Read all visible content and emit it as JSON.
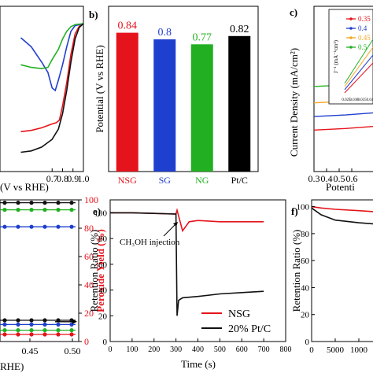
{
  "chart_data": [
    {
      "type": "line",
      "panel": "a",
      "xlabel": "(V vs RHE)",
      "xlim": [
        0.2,
        1.0
      ],
      "x_ticks": [
        "0.7",
        "0.8",
        "0.9",
        "1.0"
      ],
      "series": [
        {
          "color": "#e5131b",
          "points": [
            [
              0.4,
              -4.2
            ],
            [
              0.5,
              -4.15
            ],
            [
              0.6,
              -4.05
            ],
            [
              0.7,
              -3.9
            ],
            [
              0.74,
              -3.85
            ],
            [
              0.77,
              -3.75
            ],
            [
              0.8,
              -3.2
            ],
            [
              0.84,
              -2.3
            ],
            [
              0.88,
              -1.2
            ],
            [
              0.92,
              -0.4
            ],
            [
              0.96,
              -0.1
            ],
            [
              1.0,
              0
            ]
          ]
        },
        {
          "color": "#1f3fcf",
          "points": [
            [
              0.4,
              -0.55
            ],
            [
              0.5,
              -0.9
            ],
            [
              0.6,
              -1.5
            ],
            [
              0.66,
              -1.9
            ],
            [
              0.7,
              -2.5
            ],
            [
              0.73,
              -2.6
            ],
            [
              0.76,
              -2.2
            ],
            [
              0.8,
              -1.6
            ],
            [
              0.84,
              -0.9
            ],
            [
              0.88,
              -0.3
            ],
            [
              0.92,
              -0.08
            ],
            [
              1.0,
              0
            ]
          ]
        },
        {
          "color": "#22b022",
          "points": [
            [
              0.4,
              -1.6
            ],
            [
              0.5,
              -1.7
            ],
            [
              0.6,
              -1.75
            ],
            [
              0.66,
              -1.7
            ],
            [
              0.7,
              -1.4
            ],
            [
              0.76,
              -1.0
            ],
            [
              0.8,
              -0.6
            ],
            [
              0.84,
              -0.3
            ],
            [
              0.88,
              -0.12
            ],
            [
              0.92,
              -0.04
            ],
            [
              1.0,
              0
            ]
          ]
        },
        {
          "color": "#111111",
          "points": [
            [
              0.4,
              -5.0
            ],
            [
              0.5,
              -4.95
            ],
            [
              0.6,
              -4.8
            ],
            [
              0.7,
              -4.5
            ],
            [
              0.76,
              -4.1
            ],
            [
              0.8,
              -3.5
            ],
            [
              0.84,
              -2.6
            ],
            [
              0.88,
              -1.5
            ],
            [
              0.92,
              -0.6
            ],
            [
              0.96,
              -0.15
            ],
            [
              1.0,
              0
            ]
          ]
        }
      ]
    },
    {
      "type": "bar",
      "panel": "b",
      "panel_label": "b)",
      "ylabel": "Potential (V vs RHE)",
      "ylim": [
        0,
        1.0
      ],
      "categories": [
        "NSG",
        "SG",
        "NG",
        "Pt/C"
      ],
      "values": [
        0.84,
        0.8,
        0.77,
        0.82
      ],
      "value_labels": [
        "0.84",
        "0.8",
        "0.77",
        "0.82"
      ],
      "colors": [
        "#e5131b",
        "#1f3fcf",
        "#22b022",
        "#000000"
      ]
    },
    {
      "type": "line",
      "panel": "c_top",
      "panel_label": "c)",
      "ylabel": "Current Density (mA/cm²)",
      "xlabel": "Potenti",
      "xlim": [
        0.3,
        0.8
      ],
      "x_ticks": [
        "0.3",
        "0.4",
        "0.5",
        "0.6"
      ],
      "series": [
        {
          "color": "#22b022",
          "level": 0.78
        },
        {
          "color": "#f5a623",
          "level": 0.6
        },
        {
          "color": "#1f3fcf",
          "level": 0.45
        },
        {
          "color": "#e5131b",
          "level": 0.3
        }
      ],
      "inset": {
        "legend": [
          "0.35",
          "0.4",
          "0.45",
          "0.5"
        ],
        "legend_colors": [
          "#e5131b",
          "#1f3fcf",
          "#f5a623",
          "#22b022"
        ],
        "ylabel": "J⁻¹ (mA⁻¹cm²)",
        "x_ticks": [
          "0.025",
          "0.030",
          "0.035",
          "0.04"
        ]
      }
    },
    {
      "type": "scatter",
      "panel": "d",
      "ylabel": "Peroxide Yield (%)",
      "ylim": [
        0,
        100
      ],
      "y_ticks": [
        "0",
        "20",
        "40",
        "60",
        "80",
        "100"
      ],
      "xlabel": "RHE)",
      "x_ticks": [
        "0.45",
        "0.50"
      ],
      "series": [
        {
          "color": "#111111",
          "y": 98
        },
        {
          "color": "#22b022",
          "y": 93
        },
        {
          "color": "#1f3fcf",
          "y": 81
        },
        {
          "color": "#111111",
          "y": 15
        },
        {
          "color": "#1f3fcf",
          "y": 12
        },
        {
          "color": "#22b022",
          "y": 8
        },
        {
          "color": "#e5131b",
          "y": 5
        }
      ]
    },
    {
      "type": "line",
      "panel": "e",
      "panel_label": "e)",
      "ylabel": "Retention Ratio (%)",
      "xlabel": "Time (s)",
      "ylim": [
        0,
        110
      ],
      "xlim": [
        0,
        800
      ],
      "y_ticks": [
        "0",
        "20",
        "40",
        "60",
        "80",
        "100"
      ],
      "x_ticks": [
        "0",
        "100",
        "200",
        "300",
        "400",
        "500",
        "600",
        "700",
        "800"
      ],
      "annotation": "CH₃OH injection",
      "legend": [
        "NSG",
        "20% Pt/C"
      ],
      "series": [
        {
          "name": "NSG",
          "color": "#e5131b",
          "points": [
            [
              0,
              100
            ],
            [
              100,
              100
            ],
            [
              200,
              99.5
            ],
            [
              300,
              99
            ],
            [
              305,
              102
            ],
            [
              330,
              86
            ],
            [
              360,
              93
            ],
            [
              400,
              94
            ],
            [
              500,
              93
            ],
            [
              600,
              93
            ],
            [
              700,
              93
            ]
          ]
        },
        {
          "name": "20% Pt/C",
          "color": "#111111",
          "points": [
            [
              0,
              100
            ],
            [
              100,
              100
            ],
            [
              200,
              99.5
            ],
            [
              300,
              99
            ],
            [
              305,
              20
            ],
            [
              312,
              32
            ],
            [
              330,
              34
            ],
            [
              400,
              35
            ],
            [
              500,
              37
            ],
            [
              600,
              38
            ],
            [
              700,
              39
            ]
          ]
        }
      ]
    },
    {
      "type": "line",
      "panel": "f",
      "panel_label": "f)",
      "ylabel": "Retention Ratio (%)",
      "ylim": [
        0,
        105
      ],
      "y_ticks": [
        "0",
        "20",
        "40",
        "60",
        "80",
        "100"
      ],
      "x_ticks": [
        "0",
        "5000",
        "1000"
      ],
      "series": [
        {
          "color": "#e5131b",
          "points": [
            [
              0,
              100
            ],
            [
              2000,
              99
            ],
            [
              5000,
              98
            ],
            [
              10000,
              97
            ],
            [
              14000,
              96
            ]
          ]
        },
        {
          "color": "#111111",
          "points": [
            [
              0,
              99
            ],
            [
              2000,
              94
            ],
            [
              5000,
              90
            ],
            [
              10000,
              88
            ],
            [
              14000,
              87
            ]
          ]
        }
      ]
    }
  ]
}
